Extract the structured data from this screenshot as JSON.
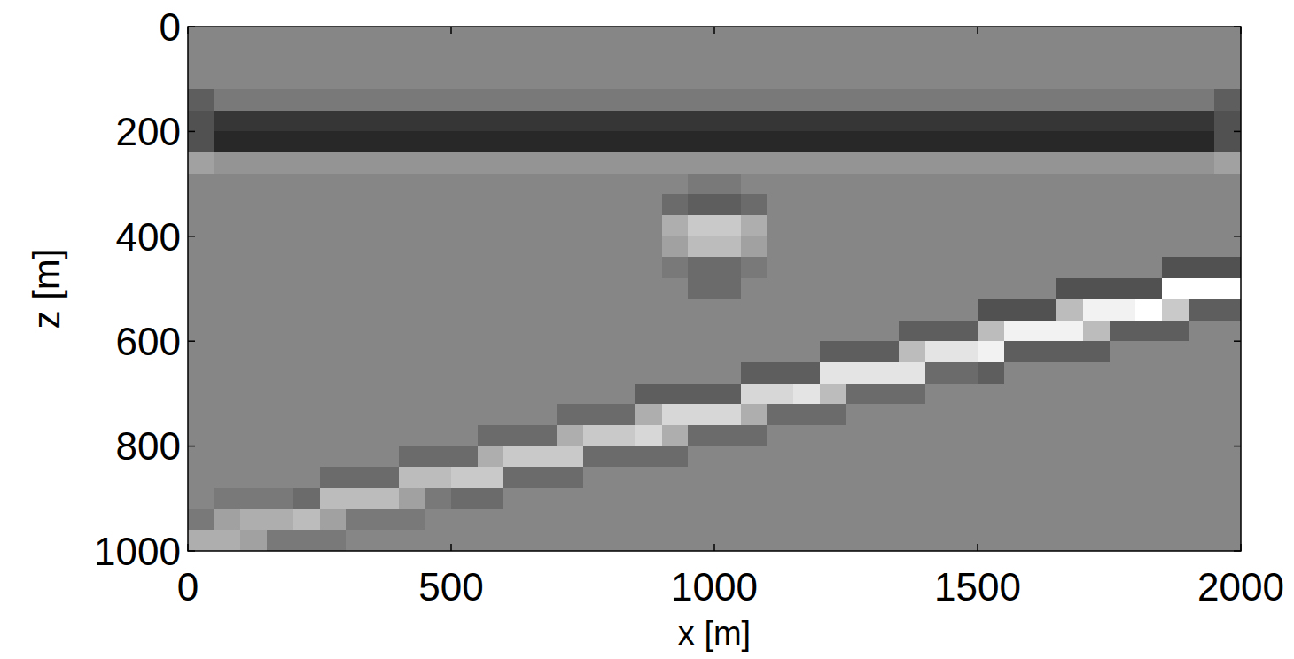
{
  "chart_data": {
    "type": "heatmap",
    "xlabel": "x [m]",
    "ylabel": "z [m]",
    "xlim": [
      0,
      2000
    ],
    "ylim": [
      1000,
      0
    ],
    "xticks": [
      0,
      500,
      1000,
      1500,
      2000
    ],
    "yticks": [
      0,
      200,
      400,
      600,
      800,
      1000
    ],
    "color": "gray",
    "color_range": [
      -10,
      9
    ],
    "cells": [
      [
        0,
        0,
        0,
        0,
        0,
        0,
        0,
        0,
        0,
        0,
        0,
        0,
        0,
        0,
        0,
        0,
        0,
        0,
        0,
        0,
        0,
        0,
        0,
        0,
        0,
        0,
        0,
        0,
        0,
        0,
        0,
        0,
        0,
        0,
        0,
        0,
        0,
        0,
        0,
        0
      ],
      [
        0,
        0,
        0,
        0,
        0,
        0,
        0,
        0,
        0,
        0,
        0,
        0,
        0,
        0,
        0,
        0,
        0,
        0,
        0,
        0,
        0,
        0,
        0,
        0,
        0,
        0,
        0,
        0,
        0,
        0,
        0,
        0,
        0,
        0,
        0,
        0,
        0,
        0,
        0,
        0
      ],
      [
        0,
        0,
        0,
        0,
        0,
        0,
        0,
        0,
        0,
        0,
        0,
        0,
        0,
        0,
        0,
        0,
        0,
        0,
        0,
        0,
        0,
        0,
        0,
        0,
        0,
        0,
        0,
        0,
        0,
        0,
        0,
        0,
        0,
        0,
        0,
        0,
        0,
        0,
        0,
        0
      ],
      [
        -3,
        -1,
        -1,
        -1,
        -1,
        -1,
        -1,
        -1,
        -1,
        -1,
        -1,
        -1,
        -1,
        -1,
        -1,
        -1,
        -1,
        -1,
        -1,
        -1,
        -1,
        -1,
        -1,
        -1,
        -1,
        -1,
        -1,
        -1,
        -1,
        -1,
        -1,
        -1,
        -1,
        -1,
        -1,
        -1,
        -1,
        -1,
        -1,
        -3
      ],
      [
        -4,
        -6,
        -6,
        -6,
        -6,
        -6,
        -6,
        -6,
        -6,
        -6,
        -6,
        -6,
        -6,
        -6,
        -6,
        -6,
        -6,
        -6,
        -6,
        -6,
        -6,
        -6,
        -6,
        -6,
        -6,
        -6,
        -6,
        -6,
        -6,
        -6,
        -6,
        -6,
        -6,
        -6,
        -6,
        -6,
        -6,
        -6,
        -6,
        -4
      ],
      [
        -4,
        -7,
        -7,
        -7,
        -7,
        -7,
        -7,
        -7,
        -7,
        -7,
        -7,
        -7,
        -7,
        -7,
        -7,
        -7,
        -7,
        -7,
        -7,
        -7,
        -7,
        -7,
        -7,
        -7,
        -7,
        -7,
        -7,
        -7,
        -7,
        -7,
        -7,
        -7,
        -7,
        -7,
        -7,
        -7,
        -7,
        -7,
        -7,
        -4
      ],
      [
        2,
        1,
        1,
        1,
        1,
        1,
        1,
        1,
        1,
        1,
        1,
        1,
        1,
        1,
        1,
        1,
        1,
        1,
        1,
        1,
        1,
        1,
        1,
        1,
        1,
        1,
        1,
        1,
        1,
        1,
        1,
        1,
        1,
        1,
        1,
        1,
        1,
        1,
        1,
        2
      ],
      [
        0,
        0,
        0,
        0,
        0,
        0,
        0,
        0,
        0,
        0,
        0,
        0,
        0,
        0,
        0,
        0,
        0,
        0,
        0,
        -1,
        -1,
        0,
        0,
        0,
        0,
        0,
        0,
        0,
        0,
        0,
        0,
        0,
        0,
        0,
        0,
        0,
        0,
        0,
        0,
        0
      ],
      [
        0,
        0,
        0,
        0,
        0,
        0,
        0,
        0,
        0,
        0,
        0,
        0,
        0,
        0,
        0,
        0,
        0,
        0,
        -2,
        -3,
        -3,
        -2,
        0,
        0,
        0,
        0,
        0,
        0,
        0,
        0,
        0,
        0,
        0,
        0,
        0,
        0,
        0,
        0,
        0,
        0
      ],
      [
        0,
        0,
        0,
        0,
        0,
        0,
        0,
        0,
        0,
        0,
        0,
        0,
        0,
        0,
        0,
        0,
        0,
        0,
        3,
        5,
        5,
        3,
        0,
        0,
        0,
        0,
        0,
        0,
        0,
        0,
        0,
        0,
        0,
        0,
        0,
        0,
        0,
        0,
        0,
        0
      ],
      [
        0,
        0,
        0,
        0,
        0,
        0,
        0,
        0,
        0,
        0,
        0,
        0,
        0,
        0,
        0,
        0,
        0,
        0,
        2,
        4,
        4,
        2,
        0,
        0,
        0,
        0,
        0,
        0,
        0,
        0,
        0,
        0,
        0,
        0,
        0,
        0,
        0,
        0,
        0,
        0
      ],
      [
        0,
        0,
        0,
        0,
        0,
        0,
        0,
        0,
        0,
        0,
        0,
        0,
        0,
        0,
        0,
        0,
        0,
        0,
        -1,
        -2,
        -2,
        -1,
        0,
        0,
        0,
        0,
        0,
        0,
        0,
        0,
        0,
        0,
        0,
        0,
        0,
        0,
        0,
        -4,
        -4,
        -4
      ],
      [
        0,
        0,
        0,
        0,
        0,
        0,
        0,
        0,
        0,
        0,
        0,
        0,
        0,
        0,
        0,
        0,
        0,
        0,
        0,
        -2,
        -2,
        0,
        0,
        0,
        0,
        0,
        0,
        0,
        0,
        0,
        0,
        0,
        0,
        -4,
        -4,
        -4,
        -4,
        9,
        9,
        9
      ],
      [
        0,
        0,
        0,
        0,
        0,
        0,
        0,
        0,
        0,
        0,
        0,
        0,
        0,
        0,
        0,
        0,
        0,
        0,
        0,
        0,
        0,
        0,
        0,
        0,
        0,
        0,
        0,
        0,
        0,
        0,
        -4,
        -4,
        -4,
        4,
        8,
        8,
        9,
        5,
        -3,
        -3
      ],
      [
        0,
        0,
        0,
        0,
        0,
        0,
        0,
        0,
        0,
        0,
        0,
        0,
        0,
        0,
        0,
        0,
        0,
        0,
        0,
        0,
        0,
        0,
        0,
        0,
        0,
        0,
        0,
        -3,
        -3,
        -3,
        4,
        8,
        8,
        8,
        4,
        -3,
        -3,
        -3,
        0,
        0
      ],
      [
        0,
        0,
        0,
        0,
        0,
        0,
        0,
        0,
        0,
        0,
        0,
        0,
        0,
        0,
        0,
        0,
        0,
        0,
        0,
        0,
        0,
        0,
        0,
        0,
        -3,
        -3,
        -3,
        4,
        7,
        7,
        8,
        -3,
        -3,
        -3,
        -3,
        0,
        0,
        0,
        0,
        0
      ],
      [
        0,
        0,
        0,
        0,
        0,
        0,
        0,
        0,
        0,
        0,
        0,
        0,
        0,
        0,
        0,
        0,
        0,
        0,
        0,
        0,
        0,
        -3,
        -3,
        -3,
        7,
        7,
        7,
        7,
        -2,
        -2,
        -3,
        0,
        0,
        0,
        0,
        0,
        0,
        0,
        0,
        0
      ],
      [
        0,
        0,
        0,
        0,
        0,
        0,
        0,
        0,
        0,
        0,
        0,
        0,
        0,
        0,
        0,
        0,
        0,
        -3,
        -3,
        -3,
        -3,
        6,
        6,
        7,
        4,
        -2,
        -2,
        -2,
        0,
        0,
        0,
        0,
        0,
        0,
        0,
        0,
        0,
        0,
        0,
        0
      ],
      [
        0,
        0,
        0,
        0,
        0,
        0,
        0,
        0,
        0,
        0,
        0,
        0,
        0,
        0,
        -2,
        -2,
        -2,
        3,
        6,
        6,
        6,
        3,
        -2,
        -2,
        -2,
        0,
        0,
        0,
        0,
        0,
        0,
        0,
        0,
        0,
        0,
        0,
        0,
        0,
        0,
        0
      ],
      [
        0,
        0,
        0,
        0,
        0,
        0,
        0,
        0,
        0,
        0,
        0,
        -2,
        -2,
        -2,
        3,
        5,
        5,
        6,
        3,
        -2,
        -2,
        -2,
        0,
        0,
        0,
        0,
        0,
        0,
        0,
        0,
        0,
        0,
        0,
        0,
        0,
        0,
        0,
        0,
        0,
        0
      ],
      [
        0,
        0,
        0,
        0,
        0,
        0,
        0,
        0,
        -2,
        -2,
        -2,
        3,
        5,
        5,
        5,
        -2,
        -2,
        -2,
        -2,
        0,
        0,
        0,
        0,
        0,
        0,
        0,
        0,
        0,
        0,
        0,
        0,
        0,
        0,
        0,
        0,
        0,
        0,
        0,
        0,
        0
      ],
      [
        0,
        0,
        0,
        0,
        0,
        -2,
        -2,
        -2,
        4,
        4,
        5,
        5,
        -2,
        -2,
        -2,
        0,
        0,
        0,
        0,
        0,
        0,
        0,
        0,
        0,
        0,
        0,
        0,
        0,
        0,
        0,
        0,
        0,
        0,
        0,
        0,
        0,
        0,
        0,
        0,
        0
      ],
      [
        0,
        -1,
        -1,
        -1,
        -2,
        4,
        4,
        4,
        2,
        -1,
        -2,
        -2,
        0,
        0,
        0,
        0,
        0,
        0,
        0,
        0,
        0,
        0,
        0,
        0,
        0,
        0,
        0,
        0,
        0,
        0,
        0,
        0,
        0,
        0,
        0,
        0,
        0,
        0,
        0,
        0
      ],
      [
        -1,
        2,
        3,
        3,
        4,
        2,
        -1,
        -1,
        -1,
        0,
        0,
        0,
        0,
        0,
        0,
        0,
        0,
        0,
        0,
        0,
        0,
        0,
        0,
        0,
        0,
        0,
        0,
        0,
        0,
        0,
        0,
        0,
        0,
        0,
        0,
        0,
        0,
        0,
        0,
        0
      ],
      [
        3,
        3,
        2,
        -1,
        -1,
        -1,
        0,
        0,
        0,
        0,
        0,
        0,
        0,
        0,
        0,
        0,
        0,
        0,
        0,
        0,
        0,
        0,
        0,
        0,
        0,
        0,
        0,
        0,
        0,
        0,
        0,
        0,
        0,
        0,
        0,
        0,
        0,
        0,
        0,
        0
      ]
    ]
  }
}
